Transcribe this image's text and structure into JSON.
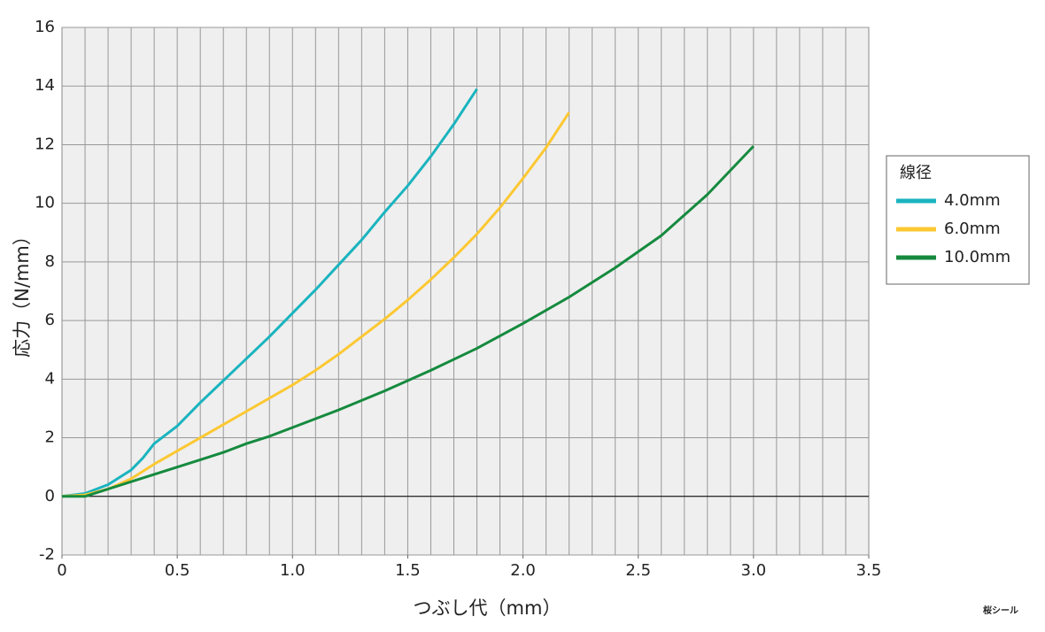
{
  "chart_data": {
    "type": "line",
    "xlabel": "つぶし代（mm）",
    "ylabel": "応力（N/mm）",
    "legend_title": "線径",
    "legend_position": "right",
    "logo": "桜シール",
    "xlim": [
      0,
      3.5
    ],
    "xticks": [
      0,
      0.5,
      {
        "value": 1,
        "label": "1.0"
      },
      1.5,
      {
        "value": 2,
        "label": "2.0"
      },
      2.5,
      {
        "value": 3,
        "label": "3.0"
      },
      3.5
    ],
    "xgrid": [
      0.1,
      0.2,
      0.3,
      0.4,
      0.5,
      0.6,
      0.7,
      0.8,
      0.9,
      1.0,
      1.1,
      1.2,
      1.3,
      1.4,
      1.5,
      1.6,
      1.7,
      1.8,
      1.9,
      2.0,
      2.1,
      2.2,
      2.3,
      2.4,
      2.5,
      2.6,
      2.7,
      2.8,
      2.9,
      3.0,
      3.1,
      3.2,
      3.3,
      3.4
    ],
    "ylim": [
      -2,
      16
    ],
    "yticks": [
      -2,
      0,
      2,
      4,
      6,
      8,
      10,
      12,
      14,
      16
    ],
    "grid": true,
    "series": [
      {
        "name": "4.0mm",
        "color": "#1ab4bf",
        "x": [
          0,
          0.1,
          0.2,
          0.3,
          0.35,
          0.4,
          0.5,
          0.6,
          0.7,
          0.8,
          0.9,
          1.0,
          1.1,
          1.2,
          1.3,
          1.4,
          1.5,
          1.6,
          1.7,
          1.8
        ],
        "values": [
          0,
          0.1,
          0.4,
          0.9,
          1.3,
          1.8,
          2.4,
          3.2,
          3.95,
          4.7,
          5.45,
          6.25,
          7.05,
          7.9,
          8.75,
          9.7,
          10.6,
          11.6,
          12.7,
          13.9
        ]
      },
      {
        "name": "6.0mm",
        "color": "#fcc832",
        "x": [
          0,
          0.1,
          0.2,
          0.3,
          0.4,
          0.5,
          0.6,
          0.7,
          0.8,
          0.9,
          1.0,
          1.1,
          1.2,
          1.3,
          1.4,
          1.5,
          1.6,
          1.7,
          1.8,
          1.9,
          2.0,
          2.1,
          2.2
        ],
        "values": [
          0,
          0.05,
          0.25,
          0.6,
          1.1,
          1.55,
          2.0,
          2.45,
          2.9,
          3.35,
          3.8,
          4.3,
          4.85,
          5.45,
          6.05,
          6.7,
          7.4,
          8.15,
          8.95,
          9.85,
          10.85,
          11.9,
          13.1
        ]
      },
      {
        "name": "10.0mm",
        "color": "#158a3e",
        "x": [
          0,
          0.1,
          0.2,
          0.3,
          0.4,
          0.5,
          0.6,
          0.7,
          0.8,
          0.9,
          1.0,
          1.2,
          1.4,
          1.6,
          1.8,
          2.0,
          2.2,
          2.4,
          2.6,
          2.8,
          3.0
        ],
        "values": [
          0,
          0.0,
          0.25,
          0.5,
          0.75,
          1.0,
          1.25,
          1.5,
          1.8,
          2.05,
          2.35,
          2.95,
          3.6,
          4.3,
          5.05,
          5.9,
          6.8,
          7.8,
          8.9,
          10.3,
          11.95
        ]
      }
    ]
  }
}
